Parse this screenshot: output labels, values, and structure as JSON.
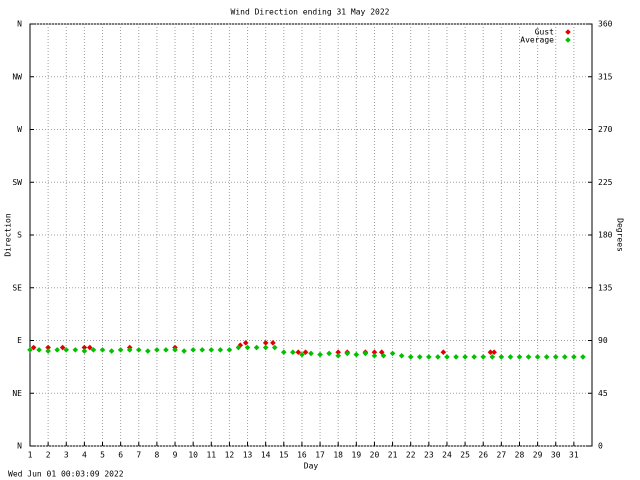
{
  "chart_data": {
    "type": "scatter",
    "title": "Wind Direction ending 31 May 2022",
    "xlabel": "Day",
    "ylabel": "Direction",
    "y2label": "Degrees",
    "footer": "Wed Jun 01 00:03:09 2022",
    "xlim": [
      1,
      32
    ],
    "xticks": [
      1,
      2,
      3,
      4,
      5,
      6,
      7,
      8,
      9,
      10,
      11,
      12,
      13,
      14,
      15,
      16,
      17,
      18,
      19,
      20,
      21,
      22,
      23,
      24,
      25,
      26,
      27,
      28,
      29,
      30,
      31
    ],
    "ylim": [
      0,
      360
    ],
    "yticks": [
      {
        "value": 0,
        "label": "N"
      },
      {
        "value": 45,
        "label": "NE"
      },
      {
        "value": 90,
        "label": "E"
      },
      {
        "value": 135,
        "label": "SE"
      },
      {
        "value": 180,
        "label": "S"
      },
      {
        "value": 225,
        "label": "SW"
      },
      {
        "value": 270,
        "label": "W"
      },
      {
        "value": 315,
        "label": "NW"
      },
      {
        "value": 360,
        "label": "N"
      }
    ],
    "y2lim": [
      0,
      360
    ],
    "y2ticks": [
      0,
      45,
      90,
      135,
      180,
      225,
      270,
      315,
      360
    ],
    "grid": true,
    "legend": "top-right",
    "series": [
      {
        "name": "Gust",
        "color": "#e00000",
        "x": [
          1.2,
          2,
          2.8,
          4,
          4.3,
          6.5,
          9,
          12.6,
          12.9,
          14,
          14.4,
          15.8,
          16.2,
          18,
          18.5,
          19.5,
          20,
          20.4,
          23.8,
          26.4,
          26.6
        ],
        "values": [
          84,
          84,
          84,
          84,
          84,
          84,
          84,
          86,
          88,
          88,
          88,
          80,
          80,
          80,
          80,
          80,
          80,
          80,
          80,
          80,
          80
        ]
      },
      {
        "name": "Average",
        "color": "#00c000",
        "x": [
          1,
          1.5,
          2,
          2.5,
          3,
          3.5,
          4,
          4.5,
          5,
          5.5,
          6,
          6.5,
          7,
          7.5,
          8,
          8.5,
          9,
          9.5,
          10,
          10.5,
          11,
          11.5,
          12,
          12.5,
          13,
          13.5,
          14,
          14.5,
          15,
          15.5,
          16,
          16.5,
          17,
          17.5,
          18,
          18.5,
          19,
          19.5,
          20,
          20.5,
          21,
          21.5,
          22,
          22.5,
          23,
          23.5,
          24,
          24.5,
          25,
          25.5,
          26,
          26.5,
          27,
          27.5,
          28,
          28.5,
          29,
          29.5,
          30,
          30.5,
          31,
          31.5
        ],
        "values": [
          82,
          82,
          81,
          82,
          82,
          82,
          81,
          82,
          82,
          81,
          82,
          82,
          82,
          81,
          82,
          82,
          82,
          81,
          82,
          82,
          82,
          82,
          82,
          84,
          84,
          84,
          84,
          84,
          80,
          80,
          78,
          79,
          78,
          79,
          77,
          79,
          78,
          79,
          77,
          77,
          79,
          77,
          76,
          76,
          76,
          76,
          76,
          76,
          76,
          76,
          76,
          76,
          76,
          76,
          76,
          76,
          76,
          76,
          76,
          76,
          76,
          76
        ]
      }
    ]
  }
}
